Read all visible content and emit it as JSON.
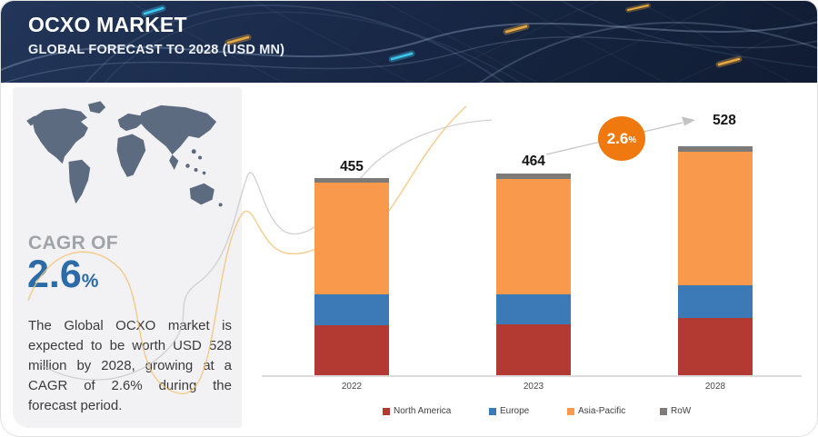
{
  "header": {
    "title": "OCXO MARKET",
    "subtitle": "GLOBAL FORECAST TO 2028 (USD MN)"
  },
  "sidebar": {
    "cagr_label": "CAGR OF",
    "cagr_value": "2.6",
    "cagr_unit": "%",
    "description": "The Global OCXO market is expected to be worth USD 528 million by 2028, growing at a CAGR of 2.6% during the forecast period."
  },
  "chart_data": {
    "type": "bar",
    "stacked": true,
    "title": "",
    "xlabel": "",
    "ylabel": "",
    "categories": [
      "2022",
      "2023",
      "2028"
    ],
    "totals": [
      455,
      464,
      528
    ],
    "series": [
      {
        "name": "North America",
        "color": "#b23a32",
        "values": [
          115,
          117,
          132
        ]
      },
      {
        "name": "Europe",
        "color": "#3b7ab7",
        "values": [
          71,
          70,
          76
        ]
      },
      {
        "name": "Asia-Pacific",
        "color": "#f8994c",
        "values": [
          257,
          266,
          307
        ]
      },
      {
        "name": "RoW",
        "color": "#7d7a78",
        "values": [
          12,
          11,
          13
        ]
      }
    ],
    "ylim": [
      0,
      560
    ],
    "grid": false,
    "legend_position": "bottom",
    "cagr_annotation": {
      "value": "2.6",
      "unit": "%",
      "from_category": "2023",
      "to_category": "2028"
    }
  },
  "colors": {
    "header_bg": "#16233d",
    "panel_bg": "#f2f2f4",
    "map": "#5d6b80",
    "cagr_blue": "#2b6ba7",
    "cagr_gray": "#a0a3a7",
    "bubble_orange": "#f0790f",
    "decor_gold": "#f3c375",
    "decor_gray": "#c9c9c9"
  }
}
